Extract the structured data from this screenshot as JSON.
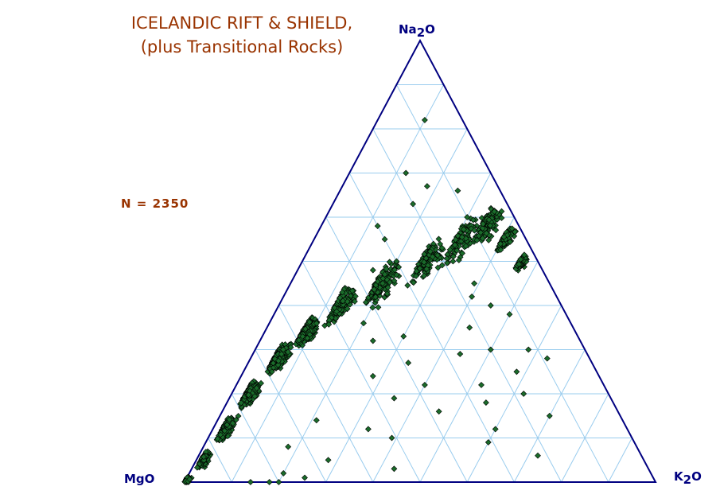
{
  "title": [
    "ICELANDIC RIFT & SHIELD,",
    "(plus Transitional Rocks)"
  ],
  "n_label": "N = 2350",
  "axes": {
    "top": {
      "base": "Na",
      "sub": "2",
      "tail": "O"
    },
    "left": {
      "base": "MgO",
      "sub": "",
      "tail": ""
    },
    "right": {
      "base": "K",
      "sub": "2",
      "tail": "O"
    }
  },
  "colors": {
    "outline": "#000080",
    "grid": "#99ccee",
    "marker": "#1a6b2a",
    "title": "#993300"
  },
  "chart_data": {
    "type": "scatter",
    "subtype": "ternary",
    "components": [
      "Na2O",
      "MgO",
      "K2O"
    ],
    "grid_step": 0.1,
    "total_points": 2350,
    "trend": [
      {
        "na": 0.0,
        "k": 0.0,
        "spread": 0.01,
        "n": 60
      },
      {
        "na": 0.05,
        "k": 0.01,
        "spread": 0.015,
        "n": 140
      },
      {
        "na": 0.12,
        "k": 0.02,
        "spread": 0.02,
        "n": 240
      },
      {
        "na": 0.2,
        "k": 0.03,
        "spread": 0.022,
        "n": 320
      },
      {
        "na": 0.28,
        "k": 0.05,
        "spread": 0.025,
        "n": 380
      },
      {
        "na": 0.34,
        "k": 0.08,
        "spread": 0.025,
        "n": 300
      },
      {
        "na": 0.4,
        "k": 0.12,
        "spread": 0.03,
        "n": 200
      },
      {
        "na": 0.45,
        "k": 0.18,
        "spread": 0.04,
        "n": 140
      },
      {
        "na": 0.5,
        "k": 0.25,
        "spread": 0.045,
        "n": 110
      },
      {
        "na": 0.55,
        "k": 0.3,
        "spread": 0.045,
        "n": 90
      },
      {
        "na": 0.58,
        "k": 0.34,
        "spread": 0.035,
        "n": 120
      },
      {
        "na": 0.55,
        "k": 0.4,
        "spread": 0.02,
        "n": 140
      },
      {
        "na": 0.5,
        "k": 0.46,
        "spread": 0.015,
        "n": 90
      }
    ],
    "scattered": [
      [
        0.82,
        0.1
      ],
      [
        0.67,
        0.18
      ],
      [
        0.63,
        0.17
      ],
      [
        0.5,
        0.32
      ],
      [
        0.45,
        0.39
      ],
      [
        0.4,
        0.45
      ],
      [
        0.3,
        0.5
      ],
      [
        0.25,
        0.58
      ],
      [
        0.2,
        0.62
      ],
      [
        0.15,
        0.7
      ],
      [
        0.3,
        0.58
      ],
      [
        0.38,
        0.5
      ],
      [
        0.1,
        0.39
      ],
      [
        0.12,
        0.33
      ],
      [
        0.22,
        0.4
      ],
      [
        0.27,
        0.34
      ],
      [
        0.32,
        0.24
      ],
      [
        0.02,
        0.2
      ],
      [
        0.01,
        0.25
      ],
      [
        0.0,
        0.18
      ],
      [
        0.0,
        0.14
      ],
      [
        0.0,
        0.2
      ],
      [
        0.43,
        0.12
      ],
      [
        0.48,
        0.16
      ],
      [
        0.18,
        0.55
      ],
      [
        0.35,
        0.43
      ],
      [
        0.55,
        0.15
      ],
      [
        0.09,
        0.6
      ],
      [
        0.06,
        0.72
      ],
      [
        0.42,
        0.4
      ],
      [
        0.28,
        0.63
      ],
      [
        0.16,
        0.46
      ],
      [
        0.24,
        0.28
      ],
      [
        0.05,
        0.28
      ],
      [
        0.6,
        0.3
      ],
      [
        0.66,
        0.25
      ],
      [
        0.36,
        0.2
      ],
      [
        0.14,
        0.21
      ],
      [
        0.08,
        0.18
      ],
      [
        0.03,
        0.43
      ],
      [
        0.19,
        0.35
      ],
      [
        0.29,
        0.44
      ],
      [
        0.33,
        0.3
      ],
      [
        0.5,
        0.2
      ],
      [
        0.58,
        0.12
      ],
      [
        0.7,
        0.12
      ],
      [
        0.22,
        0.52
      ],
      [
        0.12,
        0.6
      ]
    ]
  }
}
